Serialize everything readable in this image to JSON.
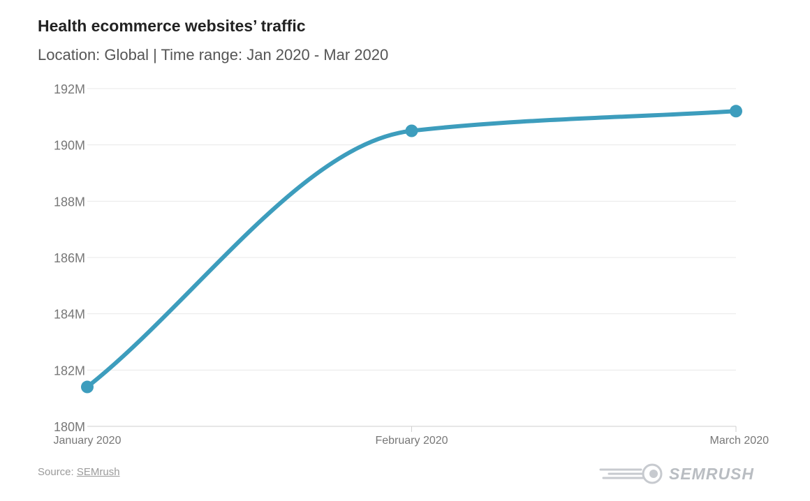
{
  "header": {
    "title": "Health ecommerce websites’ traffic",
    "subtitle": "Location: Global | Time range: Jan 2020 - Mar 2020"
  },
  "footer": {
    "source_prefix": "Source: ",
    "source_link": "SEMrush",
    "brand": "SEMRUSH"
  },
  "colors": {
    "line": "#3d9dbd",
    "grid": "#e8e8e8",
    "text": "#777777"
  },
  "chart_data": {
    "type": "line",
    "title": "Health ecommerce websites’ traffic",
    "subtitle": "Location: Global | Time range: Jan 2020 - Mar 2020",
    "categories": [
      "January 2020",
      "February 2020",
      "March 2020"
    ],
    "series": [
      {
        "values": [
          181.4,
          190.5,
          191.2
        ]
      }
    ],
    "unit": "M",
    "ylim": [
      180,
      192
    ],
    "yticks": [
      180,
      182,
      184,
      186,
      188,
      190,
      192
    ],
    "ytick_labels": [
      "180M",
      "182M",
      "184M",
      "186M",
      "188M",
      "190M",
      "192M"
    ],
    "grid": true,
    "legend": "none"
  }
}
